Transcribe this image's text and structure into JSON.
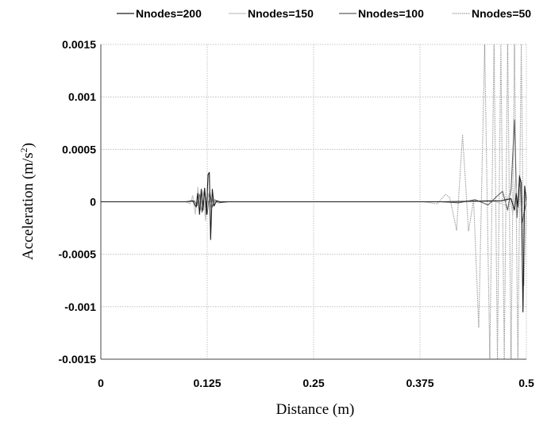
{
  "chart_data": {
    "type": "line",
    "xlabel": "Distance (m)",
    "ylabel": "Acceleration (m/s",
    "ylabel_superscript": "2",
    "ylabel_suffix": ")",
    "xlim": [
      0,
      0.5
    ],
    "ylim": [
      -0.0015,
      0.0015
    ],
    "x_ticks": [
      0,
      0.125,
      0.25,
      0.375,
      0.5
    ],
    "x_tick_labels": [
      "0",
      "0.125",
      "0.25",
      "0.375",
      "0.5"
    ],
    "y_ticks": [
      0.0015,
      0.001,
      0.0005,
      0,
      -0.0005,
      -0.001,
      -0.0015
    ],
    "y_tick_labels": [
      "0.0015",
      "0.001",
      "0.0005",
      "0",
      "-0.0005",
      "-0.001",
      "-0.0015"
    ],
    "grid": true,
    "legend_position": "top",
    "series": [
      {
        "name": "Nnodes=200",
        "color": "#1a1a1a",
        "dash": "solid",
        "x": [
          0,
          0.1,
          0.108,
          0.112,
          0.114,
          0.116,
          0.118,
          0.12,
          0.122,
          0.124,
          0.126,
          0.1275,
          0.129,
          0.131,
          0.133,
          0.136,
          0.14,
          0.2,
          0.3,
          0.4,
          0.47,
          0.482,
          0.486,
          0.488,
          0.49,
          0.492,
          0.494,
          0.496,
          0.498,
          0.5
        ],
        "y": [
          0,
          0,
          1e-05,
          -5e-05,
          8e-05,
          -0.00012,
          0.00012,
          -8e-05,
          0.00013,
          -0.00012,
          0.00026,
          0.00028,
          -0.00036,
          0.00012,
          -4e-05,
          1e-05,
          0,
          0,
          0,
          0,
          1e-05,
          3e-05,
          -8e-05,
          8e-05,
          -5e-05,
          0.00024,
          0.00018,
          -0.00105,
          0.00015,
          0
        ]
      },
      {
        "name": "Nnodes=150",
        "color": "#c4c4c4",
        "dash": "solid",
        "x": [
          0,
          0.1,
          0.105,
          0.108,
          0.111,
          0.114,
          0.117,
          0.12,
          0.123,
          0.126,
          0.129,
          0.132,
          0.136,
          0.14,
          0.2,
          0.3,
          0.4,
          0.46,
          0.475,
          0.48,
          0.484,
          0.487,
          0.49,
          0.492,
          0.494,
          0.496,
          0.5
        ],
        "y": [
          0,
          0,
          -2e-05,
          6e-05,
          -0.00012,
          0.00014,
          -8e-05,
          0.00011,
          -0.00018,
          8e-05,
          -5e-05,
          3e-05,
          -1e-05,
          0,
          0,
          0,
          0,
          1e-05,
          -3e-05,
          8e-05,
          -0.00012,
          0.0002,
          -8e-05,
          0.00014,
          -6e-05,
          5e-05,
          0
        ]
      },
      {
        "name": "Nnodes=100",
        "color": "#606060",
        "dash": "solid",
        "x": [
          0,
          0.1,
          0.11,
          0.113,
          0.116,
          0.119,
          0.122,
          0.125,
          0.128,
          0.131,
          0.134,
          0.138,
          0.15,
          0.2,
          0.3,
          0.4,
          0.42,
          0.44,
          0.455,
          0.465,
          0.472,
          0.478,
          0.482,
          0.486,
          0.489,
          0.492,
          0.495,
          0.5
        ],
        "y": [
          0,
          0,
          1e-05,
          -4e-05,
          7e-05,
          -0.0001,
          0.00011,
          -0.00012,
          9e-05,
          -5e-05,
          2e-05,
          -1e-05,
          0,
          0,
          0,
          0,
          -1e-05,
          2e-05,
          -3e-05,
          5e-05,
          0.0001,
          -8e-05,
          0.00012,
          0.00078,
          -0.00015,
          0.00025,
          -0.0002,
          0
        ]
      },
      {
        "name": "Nnodes=50",
        "color": "#8c8c8c",
        "dash": "dotted",
        "x": [
          0,
          0.1,
          0.3,
          0.38,
          0.395,
          0.405,
          0.41,
          0.418,
          0.425,
          0.432,
          0.438,
          0.444,
          0.451,
          0.457,
          0.462,
          0.466,
          0.47,
          0.474,
          0.478,
          0.482,
          0.486,
          0.49,
          0.494,
          0.497,
          0.5
        ],
        "y": [
          0,
          0,
          0,
          0,
          -2e-05,
          7e-05,
          4e-05,
          -0.00027,
          0.00064,
          -0.00028,
          2e-05,
          -0.0012,
          0.0015,
          -0.0015,
          0.0015,
          -0.0015,
          0.0015,
          -0.0015,
          0.0015,
          -0.0015,
          0.0015,
          -0.0015,
          0.0015,
          -0.0008,
          0
        ]
      }
    ]
  }
}
